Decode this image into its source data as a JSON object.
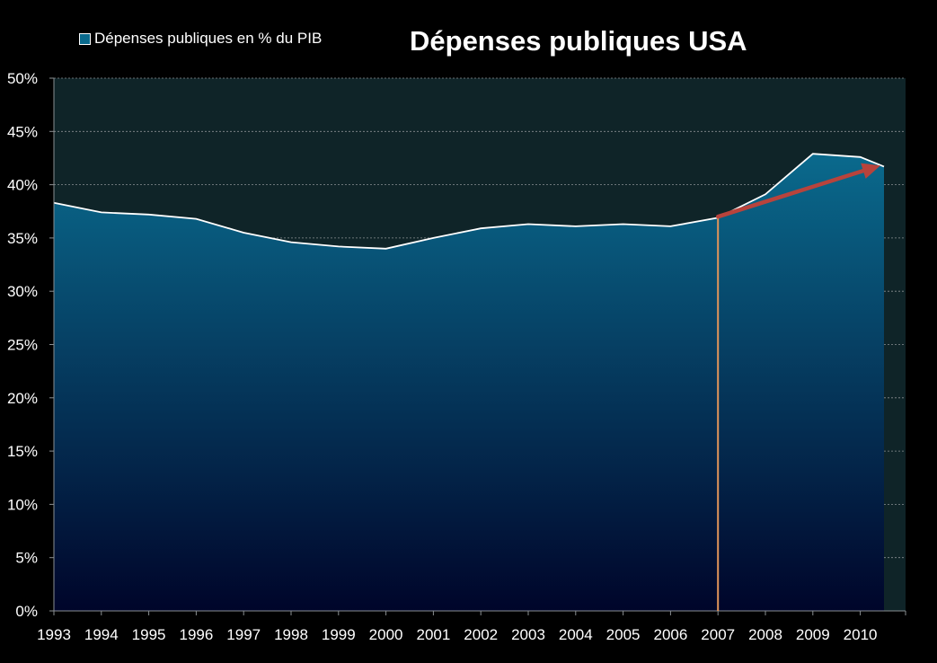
{
  "chart_data": {
    "type": "area",
    "title": "Dépenses publiques USA",
    "xlabel": "",
    "ylabel": "",
    "categories": [
      "1993",
      "1994",
      "1995",
      "1996",
      "1997",
      "1998",
      "1999",
      "2000",
      "2001",
      "2002",
      "2003",
      "2004",
      "2005",
      "2006",
      "2007",
      "2008",
      "2009",
      "2010"
    ],
    "y_tick_labels": [
      "0%",
      "5%",
      "10%",
      "15%",
      "20%",
      "25%",
      "30%",
      "35%",
      "40%",
      "45%",
      "50%"
    ],
    "ylim": [
      0,
      50
    ],
    "grid": true,
    "legend_position": "top-left",
    "series": [
      {
        "name": "Dépenses publiques en % du PIB",
        "x": [
          1993,
          1994,
          1995,
          1996,
          1997,
          1998,
          1999,
          2000,
          2001,
          2002,
          2003,
          2004,
          2005,
          2006,
          2007,
          2008,
          2009,
          2010,
          2010.5
        ],
        "values": [
          38.3,
          37.4,
          37.2,
          36.8,
          35.5,
          34.6,
          34.2,
          34.0,
          35.0,
          35.9,
          36.3,
          36.1,
          36.3,
          36.1,
          36.9,
          39.1,
          42.9,
          42.6,
          41.7
        ]
      }
    ],
    "annotations": {
      "vertical_marker_x": 2007,
      "arrow": {
        "from": [
          2007,
          37.0
        ],
        "to": [
          2010.5,
          41.8
        ]
      }
    },
    "colors": {
      "background": "#000000",
      "plot_background": "#0f2428",
      "area_top": "#0a6a8d",
      "area_bottom": "#00052a",
      "line": "#ffffff",
      "marker_line": "#e2955a",
      "arrow": "#b8433c",
      "grid": "#8a8f92",
      "text": "#ffffff"
    }
  }
}
